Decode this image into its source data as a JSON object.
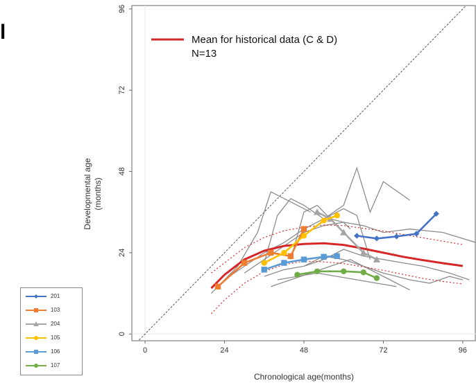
{
  "panel_letter": "l",
  "chart_data": {
    "type": "line",
    "title": "",
    "xlabel": "Chronological age(months)",
    "ylabel": "Developmental age\n(months)",
    "xlim": [
      -4,
      100
    ],
    "ylim": [
      -2,
      97
    ],
    "xticks": [
      0,
      24,
      48,
      72,
      96
    ],
    "yticks": [
      0,
      24,
      48,
      72,
      96
    ],
    "annotation": {
      "line1": "Mean for historical data (C & D)",
      "line2": "N=13"
    },
    "identity_line": {
      "x": [
        -4,
        100
      ],
      "y": [
        -4,
        100
      ],
      "color": "#555555",
      "style": "dashed"
    },
    "historical_mean": {
      "name": "Mean for historical data (C & D)",
      "color": "#d62728",
      "x": [
        20,
        24,
        30,
        36,
        42,
        48,
        54,
        60,
        66,
        72,
        78,
        84,
        90,
        96
      ],
      "y": [
        13.5,
        17.5,
        22.0,
        24.6,
        26.0,
        26.6,
        26.8,
        26.3,
        25.2,
        24.0,
        22.8,
        21.8,
        20.9,
        20.1
      ],
      "ci_upper": [
        18,
        21,
        25.5,
        28.5,
        30.5,
        31.5,
        32.2,
        32.0,
        31.2,
        30.4,
        29.4,
        28.4,
        27.4,
        26.4
      ],
      "ci_lower": [
        6,
        10,
        15,
        18.5,
        20.5,
        21.5,
        21.3,
        20.8,
        19.8,
        18.8,
        17.6,
        16.4,
        15.5,
        14.8
      ]
    },
    "historical_individuals": [
      {
        "x": [
          20,
          28,
          34,
          38,
          42,
          46,
          50
        ],
        "y": [
          12,
          20,
          30,
          42,
          40,
          38,
          36
        ]
      },
      {
        "x": [
          24,
          30,
          36,
          42,
          48,
          54,
          60,
          64,
          68,
          72,
          80
        ],
        "y": [
          16,
          20,
          24,
          27,
          31,
          34,
          38,
          49,
          36,
          45,
          39.5
        ]
      },
      {
        "x": [
          30,
          36,
          42,
          48,
          54,
          60,
          66,
          72,
          80,
          90,
          100
        ],
        "y": [
          18,
          22,
          26,
          30,
          32,
          33,
          32,
          30,
          31,
          30,
          27
        ]
      },
      {
        "x": [
          36,
          42,
          48,
          54,
          60,
          66,
          72,
          80,
          86,
          92,
          96
        ],
        "y": [
          17,
          19,
          20,
          23,
          22,
          20,
          18,
          16,
          15,
          17,
          16
        ]
      },
      {
        "x": [
          38,
          44,
          50,
          56,
          62,
          68,
          74,
          80
        ],
        "y": [
          14,
          16,
          18,
          20,
          22,
          19,
          16,
          13
        ]
      },
      {
        "x": [
          36,
          40,
          44,
          48,
          54,
          60,
          64,
          68
        ],
        "y": [
          21,
          35,
          40,
          38,
          34,
          37,
          35,
          22
        ]
      },
      {
        "x": [
          40,
          46,
          52,
          58,
          64,
          70,
          76
        ],
        "y": [
          16,
          17,
          18,
          17,
          16,
          15,
          14
        ]
      },
      {
        "x": [
          44,
          48,
          52,
          56,
          60,
          62
        ],
        "y": [
          22,
          36,
          38,
          34,
          33,
          31
        ]
      },
      {
        "x": [
          48,
          54,
          60,
          66,
          72,
          78,
          84,
          92,
          98
        ],
        "y": [
          20,
          22,
          25,
          23,
          22,
          21,
          20,
          18,
          16
        ]
      }
    ],
    "series": [
      {
        "name": "201",
        "color": "#4472c4",
        "marker": "diamond",
        "x": [
          64,
          70,
          76,
          82,
          88
        ],
        "y": [
          29.0,
          28.2,
          28.8,
          29.6,
          35.5
        ]
      },
      {
        "name": "103",
        "color": "#ed7d31",
        "marker": "square",
        "x": [
          22,
          30,
          38,
          44,
          48
        ],
        "y": [
          14.0,
          21.0,
          24.0,
          23.0,
          31.0
        ]
      },
      {
        "name": "204",
        "color": "#a5a5a5",
        "marker": "triangle",
        "x": [
          52,
          56,
          60,
          66,
          70
        ],
        "y": [
          36.0,
          34.0,
          30.0,
          24.0,
          22.0
        ]
      },
      {
        "name": "105",
        "color": "#ffc000",
        "marker": "circle",
        "x": [
          36,
          42,
          48,
          54,
          58
        ],
        "y": [
          21.0,
          24.0,
          29.0,
          33.5,
          35.0
        ]
      },
      {
        "name": "106",
        "color": "#5b9bd5",
        "marker": "square",
        "x": [
          36,
          42,
          48,
          54,
          58
        ],
        "y": [
          19.0,
          21.0,
          22.0,
          22.8,
          23.0
        ]
      },
      {
        "name": "107",
        "color": "#70ad47",
        "marker": "circle",
        "x": [
          46,
          52,
          60,
          66,
          70
        ],
        "y": [
          17.5,
          18.5,
          18.5,
          18.2,
          16.5
        ]
      }
    ]
  }
}
